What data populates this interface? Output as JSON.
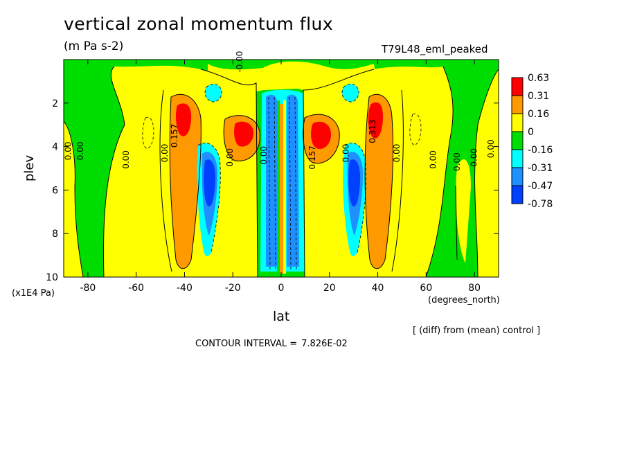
{
  "title": "vertical zonal momentum flux",
  "units": "(m Pa s-2)",
  "run_label": "T79L48_eml_peaked",
  "diff_note": "[ (diff) from (mean) control ]",
  "contour_interval_label": "CONTOUR INTERVAL =",
  "contour_interval_value": "7.826E-02",
  "colors": {
    "red": "#ff0000",
    "orange": "#ff9900",
    "yellow": "#ffff00",
    "green": "#00dd00",
    "cyan": "#00ffff",
    "lightblue": "#1e90ff",
    "blue": "#0040ff"
  },
  "chart_data": {
    "type": "heatmap",
    "subtype": "filled-contour",
    "xlabel": "lat",
    "xunits": "(degrees_north)",
    "ylabel": "plev",
    "yunits": "(x1E4 Pa)",
    "xlim": [
      -90,
      90
    ],
    "ylim": [
      10,
      0
    ],
    "y_inverted": true,
    "xticks": [
      -80,
      -60,
      -40,
      -20,
      0,
      20,
      40,
      60,
      80
    ],
    "yticks": [
      2,
      4,
      6,
      8,
      10
    ],
    "xtick_labels": [
      "-80",
      "-60",
      "-40",
      "-20",
      "0",
      "20",
      "40",
      "60",
      "80"
    ],
    "ytick_labels": [
      "2",
      "4",
      "6",
      "8",
      "10"
    ],
    "colorbar": {
      "levels": [
        "0.63",
        "0.31",
        "0.16",
        "0",
        "-0.16",
        "-0.31",
        "-0.47",
        "-0.78"
      ],
      "colors": [
        "red",
        "orange",
        "yellow",
        "green",
        "cyan",
        "lightblue",
        "blue"
      ]
    },
    "contour_labels": [
      {
        "text": "0.157",
        "lat": -43,
        "plev": 3.5
      },
      {
        "text": "0.313",
        "lat": 39,
        "plev": 3.3
      },
      {
        "text": "0.157",
        "lat": 14,
        "plev": 4.5
      },
      {
        "text": "0.00",
        "lat": -87,
        "plev": 4.2
      },
      {
        "text": "0.00",
        "lat": -82,
        "plev": 4.2
      },
      {
        "text": "0.00",
        "lat": -63,
        "plev": 4.6
      },
      {
        "text": "0.00",
        "lat": -47,
        "plev": 4.3
      },
      {
        "text": "0.00",
        "lat": -20,
        "plev": 4.5
      },
      {
        "text": "0.00",
        "lat": 49,
        "plev": 4.3
      },
      {
        "text": "0.00",
        "lat": 64,
        "plev": 4.6
      },
      {
        "text": "0.00",
        "lat": 81,
        "plev": 4.5
      },
      {
        "text": "0.00",
        "lat": 88,
        "plev": 4.1
      },
      {
        "text": "0.00",
        "lat": 74,
        "plev": 4.7
      },
      {
        "text": "0.00",
        "lat": 28,
        "plev": 4.3
      },
      {
        "text": "0.00",
        "lat": -6,
        "plev": 4.4
      },
      {
        "text": "-0.00",
        "lat": -16,
        "plev": 0.1
      }
    ]
  }
}
